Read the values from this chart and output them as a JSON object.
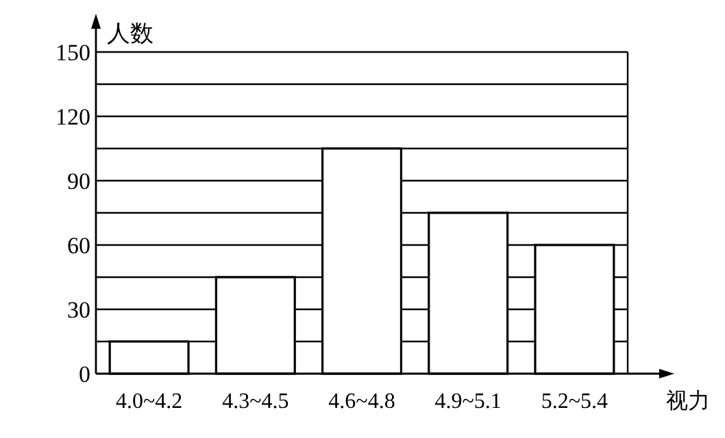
{
  "chart_data": {
    "type": "bar",
    "xlabel": "视力",
    "ylabel": "人数",
    "categories": [
      "4.0~4.2",
      "4.3~4.5",
      "4.6~4.8",
      "4.9~5.1",
      "5.2~5.4"
    ],
    "values": [
      15,
      45,
      105,
      75,
      60
    ],
    "color": "#ffffff",
    "ylim": [
      0,
      150
    ],
    "yticks": [
      0,
      {
        "value": 15,
        "label": null
      },
      30,
      {
        "value": 45,
        "label": null
      },
      60,
      {
        "value": 75,
        "label": null
      },
      90,
      {
        "value": 105,
        "label": null
      },
      120,
      {
        "value": 135,
        "label": null
      },
      150
    ],
    "grid": "y"
  }
}
